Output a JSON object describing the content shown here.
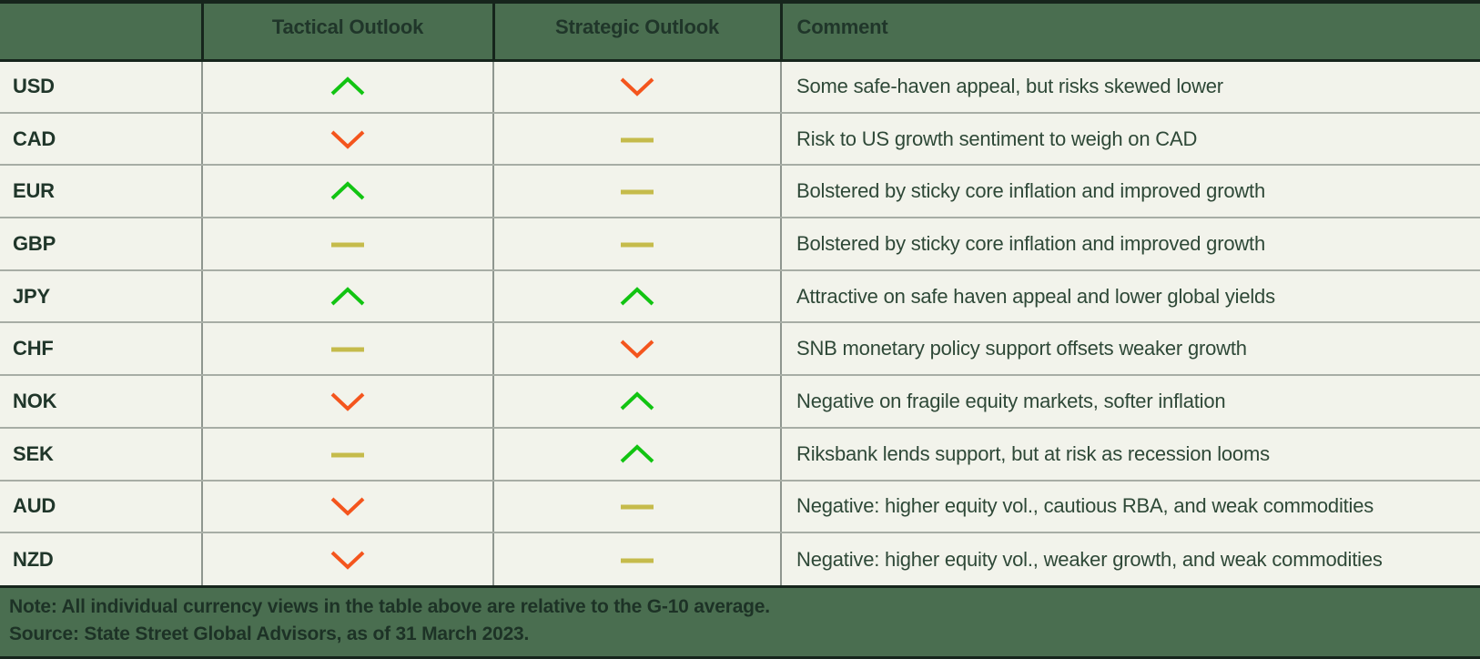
{
  "chart_data": {
    "type": "table",
    "columns": [
      "",
      "Tactical Outlook",
      "Strategic Outlook",
      "Comment"
    ],
    "legend": {
      "up": "positive outlook (green chevron up)",
      "down": "negative outlook (orange chevron down)",
      "neutral": "neutral outlook (olive dash)"
    },
    "rows": [
      {
        "currency": "USD",
        "tactical": "up",
        "strategic": "down",
        "comment": "Some safe-haven appeal, but risks skewed lower"
      },
      {
        "currency": "CAD",
        "tactical": "down",
        "strategic": "neutral",
        "comment": "Risk to US growth sentiment to weigh on CAD"
      },
      {
        "currency": "EUR",
        "tactical": "up",
        "strategic": "neutral",
        "comment": "Bolstered by sticky core inflation and improved growth"
      },
      {
        "currency": "GBP",
        "tactical": "neutral",
        "strategic": "neutral",
        "comment": "Bolstered by sticky core inflation and improved growth"
      },
      {
        "currency": "JPY",
        "tactical": "up",
        "strategic": "up",
        "comment": "Attractive on safe haven appeal and lower global yields"
      },
      {
        "currency": "CHF",
        "tactical": "neutral",
        "strategic": "down",
        "comment": "SNB monetary policy support offsets weaker growth"
      },
      {
        "currency": "NOK",
        "tactical": "down",
        "strategic": "up",
        "comment": "Negative on fragile equity markets, softer inflation"
      },
      {
        "currency": "SEK",
        "tactical": "neutral",
        "strategic": "up",
        "comment": "Riksbank lends support, but at risk as recession looms"
      },
      {
        "currency": "AUD",
        "tactical": "down",
        "strategic": "neutral",
        "comment": "Negative: higher equity vol., cautious RBA, and weak commodities"
      },
      {
        "currency": "NZD",
        "tactical": "down",
        "strategic": "neutral",
        "comment": "Negative: higher equity vol., weaker growth, and weak commodities"
      }
    ]
  },
  "footer": {
    "note": "Note: All individual currency views in the table above are relative to the G-10 average.",
    "source": "Source: State Street Global Advisors, as of 31 March 2023."
  },
  "icons": {
    "up": "up-chevron-icon",
    "down": "down-chevron-icon",
    "neutral": "dash-icon"
  },
  "colors": {
    "header_bg": "#4A6E50",
    "body_bg": "#F2F3EB",
    "dark_border": "#16251C",
    "up": "#12C412",
    "down": "#F4551D",
    "neutral": "#C5BB4B",
    "text_dark": "#20362A",
    "comment_text": "#2E4837",
    "footer_text": "#1D3226"
  }
}
